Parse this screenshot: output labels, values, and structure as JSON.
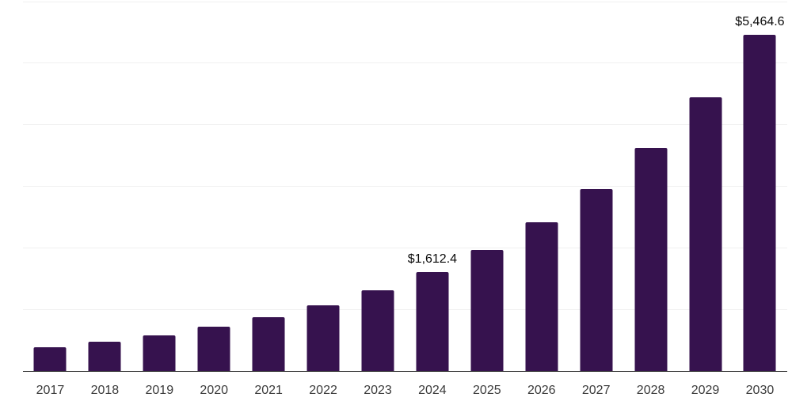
{
  "chart_data": {
    "type": "bar",
    "title": "",
    "xlabel": "",
    "ylabel": "",
    "categories": [
      "2017",
      "2018",
      "2019",
      "2020",
      "2021",
      "2022",
      "2023",
      "2024",
      "2025",
      "2026",
      "2027",
      "2028",
      "2029",
      "2030"
    ],
    "values": [
      380,
      475,
      578,
      714,
      875,
      1070,
      1315,
      1612.4,
      1960,
      2418,
      2950,
      3625,
      4450,
      5464.6
    ],
    "labeled_points": {
      "2024": "$1,612.4",
      "2030": "$5,464.6"
    },
    "ylim": [
      0,
      6000
    ],
    "gridline_step": 1000,
    "grid": "horizontal-only",
    "legend": "none",
    "y_tick_labels_visible": false,
    "colors": {
      "bar": "#36124e",
      "gridline": "#f0f0f0",
      "axis_line": "#2b2b2b",
      "tick_label": "#3a3a3a",
      "data_label": "#0a0a0a",
      "background": "#ffffff"
    }
  }
}
